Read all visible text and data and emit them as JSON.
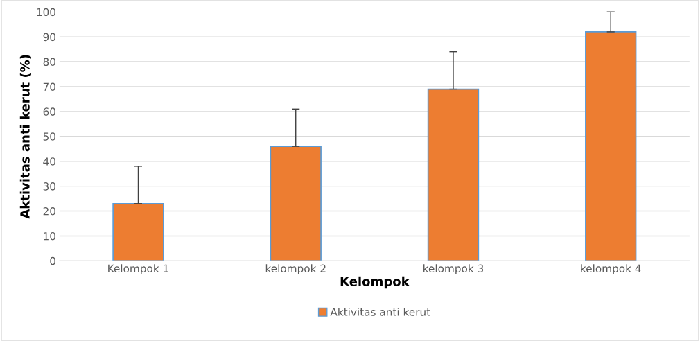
{
  "chart_data": {
    "type": "bar",
    "xlabel": "Kelompok",
    "ylabel": "Aktivitas anti kerut (%)",
    "categories": [
      "Kelompok 1",
      "kelompok 2",
      "kelompok 3",
      "kelompok 4"
    ],
    "series": [
      {
        "name": "Aktivitas anti kerut",
        "color": "#ed7d31",
        "values": [
          23,
          46,
          69,
          92
        ],
        "errors": [
          [
            23,
            38
          ],
          [
            46,
            61
          ],
          [
            69,
            84
          ],
          [
            92,
            100
          ]
        ]
      }
    ],
    "ylim": [
      0,
      100
    ],
    "yticks": [
      0,
      10,
      20,
      30,
      40,
      50,
      60,
      70,
      80,
      90,
      100
    ],
    "grid": "y",
    "legend": "bottom"
  }
}
